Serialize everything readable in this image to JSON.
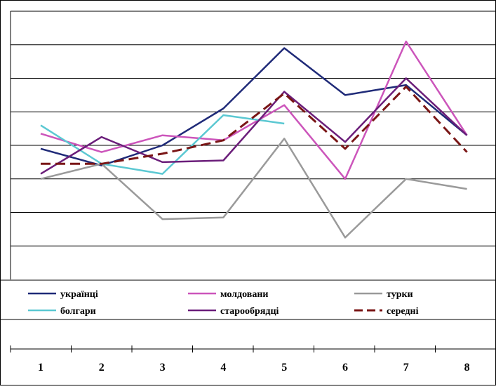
{
  "chart_data": {
    "type": "line",
    "title": "",
    "xlabel": "",
    "ylabel": "",
    "categories": [
      "1",
      "2",
      "3",
      "4",
      "5",
      "6",
      "7",
      "8"
    ],
    "ylim": [
      0,
      8
    ],
    "y_gridlines": 8,
    "grid": true,
    "legend_position": "bottom",
    "series": [
      {
        "name": "українці",
        "color": "#1f2a78",
        "dash": "solid",
        "values": [
          3.9,
          3.4,
          4.0,
          5.1,
          6.9,
          5.5,
          5.8,
          4.3
        ]
      },
      {
        "name": "молдовани",
        "color": "#cc55bb",
        "dash": "solid",
        "values": [
          4.35,
          3.8,
          4.3,
          4.15,
          5.2,
          3.0,
          7.1,
          4.3
        ]
      },
      {
        "name": "турки",
        "color": "#9a9a9a",
        "dash": "solid",
        "values": [
          3.0,
          3.45,
          1.8,
          1.85,
          4.2,
          1.25,
          3.0,
          2.7
        ]
      },
      {
        "name": "болгари",
        "color": "#5bc8d2",
        "dash": "solid",
        "values": [
          4.6,
          3.45,
          3.15,
          4.9,
          4.65,
          null,
          null,
          null
        ]
      },
      {
        "name": "старообрядці",
        "color": "#6b1e7a",
        "dash": "solid",
        "values": [
          3.15,
          4.25,
          3.5,
          3.55,
          5.6,
          4.1,
          6.0,
          4.3
        ]
      },
      {
        "name": "середні",
        "color": "#7a1616",
        "dash": "dashed",
        "values": [
          3.45,
          3.45,
          3.75,
          4.15,
          5.55,
          3.9,
          5.75,
          3.8
        ]
      }
    ]
  }
}
